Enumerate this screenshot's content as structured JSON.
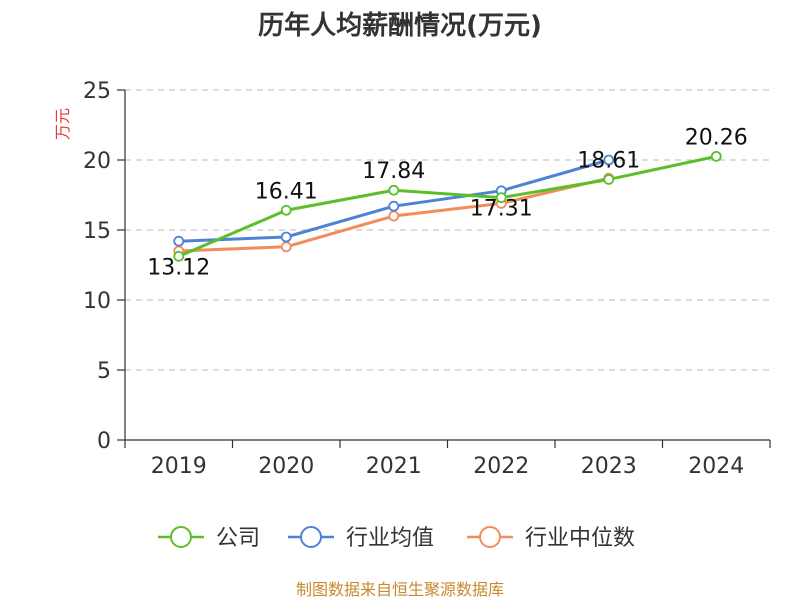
{
  "chart_data": {
    "type": "line",
    "title": "历年人均薪酬情况(万元)",
    "ylabel": "万元",
    "ylim": [
      0,
      25
    ],
    "yticks": [
      0,
      5,
      10,
      15,
      20,
      25
    ],
    "categories": [
      "2019",
      "2020",
      "2021",
      "2022",
      "2023",
      "2024"
    ],
    "grid": true,
    "legend_position": "bottom",
    "series": [
      {
        "name": "公司",
        "color": "#5cbf2a",
        "values": [
          13.12,
          16.41,
          17.84,
          17.31,
          18.61,
          20.26
        ],
        "labels": [
          "13.12",
          "16.41",
          "17.84",
          "17.31",
          "18.61",
          "20.26"
        ]
      },
      {
        "name": "行业均值",
        "color": "#4f82d6",
        "values": [
          14.2,
          14.5,
          16.7,
          17.8,
          20.0,
          null
        ]
      },
      {
        "name": "行业中位数",
        "color": "#f28c5a",
        "values": [
          13.5,
          13.8,
          16.0,
          16.9,
          18.7,
          null
        ]
      }
    ]
  },
  "ylabel_color": "#e03a3a",
  "source": {
    "text": "制图数据来自恒生聚源数据库",
    "color": "#c58a2e"
  }
}
